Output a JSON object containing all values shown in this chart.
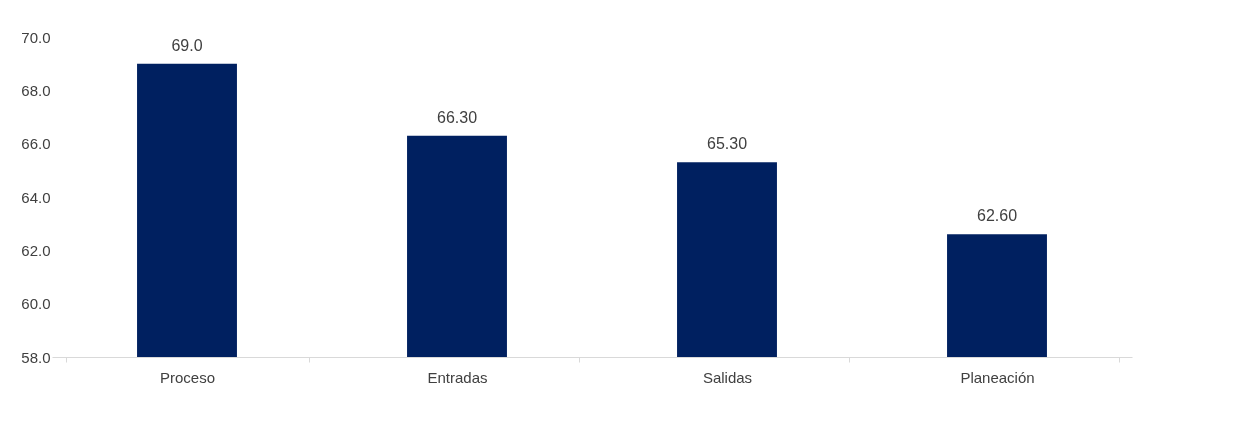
{
  "chart_data": {
    "type": "bar",
    "categories": [
      "Proceso",
      "Entradas",
      "Salidas",
      "Planeación"
    ],
    "values": [
      69.0,
      66.3,
      65.3,
      62.6
    ],
    "value_labels": [
      "69.0",
      "66.30",
      "65.30",
      "62.60"
    ],
    "color": "#002060",
    "ylim": [
      58,
      70
    ],
    "yticks": [
      {
        "value": 58,
        "label": "58.0"
      },
      {
        "value": 60,
        "label": "60.0"
      },
      {
        "value": 62,
        "label": "62.0"
      },
      {
        "value": 64,
        "label": "64.0"
      },
      {
        "value": 66,
        "label": "66.0"
      },
      {
        "value": 68,
        "label": "68.0"
      },
      {
        "value": 70,
        "label": "70.0"
      }
    ],
    "grid": false
  }
}
